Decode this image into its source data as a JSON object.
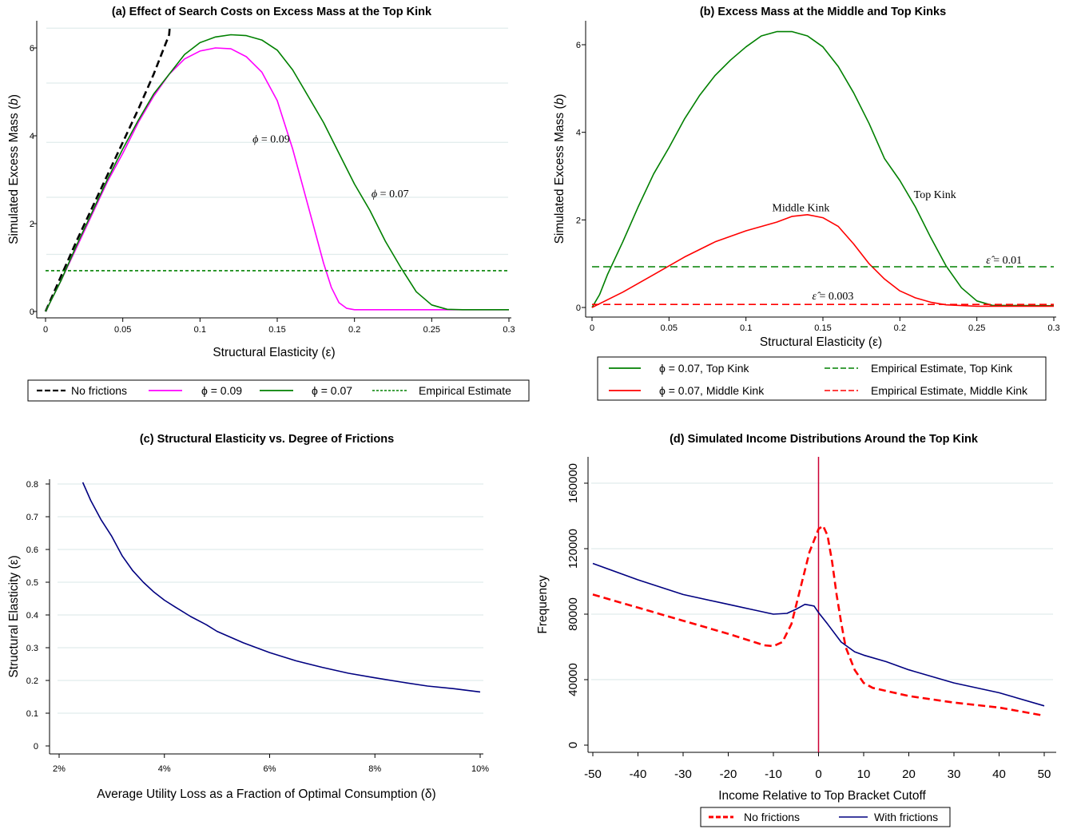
{
  "chart_data": [
    {
      "panel": "a",
      "type": "line",
      "title": "(a) Effect of Search Costs on Excess Mass at the Top Kink",
      "xlabel": "Structural Elasticity (ε)",
      "ylabel_main": "Simulated Excess Mass (",
      "ylabel_var": "b",
      "ylabel_end": ")",
      "xlim": [
        0,
        0.3
      ],
      "ylim": [
        0,
        6.5
      ],
      "xticks": [
        0,
        0.05,
        0.1,
        0.15,
        0.2,
        0.25,
        0.3
      ],
      "xtick_labels": [
        "0",
        "0.05",
        "0.1",
        "0.15",
        "0.2",
        "0.25",
        "0.3"
      ],
      "yticks": [
        0,
        2,
        4,
        6
      ],
      "ytick_labels": [
        "0",
        "2",
        "4",
        "6"
      ],
      "gridlines_y": [
        1.3,
        2.6,
        3.85,
        5.2,
        6.45
      ],
      "series": [
        {
          "name": "No frictions",
          "color": "#000000",
          "style": "dash",
          "x": [
            0,
            0.01,
            0.02,
            0.03,
            0.04,
            0.05,
            0.06,
            0.07,
            0.08,
            0.0805
          ],
          "y": [
            0,
            0.8,
            1.6,
            2.35,
            3.1,
            3.85,
            4.6,
            5.4,
            6.3,
            6.5
          ]
        },
        {
          "name": "ϕ = 0.09",
          "color": "#ff00ff",
          "style": "solid",
          "x": [
            0,
            0.01,
            0.02,
            0.03,
            0.04,
            0.05,
            0.06,
            0.07,
            0.08,
            0.09,
            0.1,
            0.11,
            0.12,
            0.13,
            0.14,
            0.15,
            0.16,
            0.17,
            0.18,
            0.185,
            0.19,
            0.195,
            0.2,
            0.21,
            0.22,
            0.25,
            0.3
          ],
          "y": [
            0,
            0.7,
            1.45,
            2.2,
            2.95,
            3.6,
            4.3,
            4.9,
            5.4,
            5.75,
            5.93,
            6.0,
            5.98,
            5.8,
            5.45,
            4.8,
            3.7,
            2.4,
            1.1,
            0.55,
            0.2,
            0.07,
            0.04,
            0.04,
            0.04,
            0.04,
            0.04
          ]
        },
        {
          "name": "ϕ = 0.07",
          "color": "#008000",
          "style": "solid",
          "x": [
            0,
            0.01,
            0.02,
            0.03,
            0.04,
            0.05,
            0.06,
            0.07,
            0.08,
            0.09,
            0.1,
            0.11,
            0.12,
            0.13,
            0.14,
            0.15,
            0.16,
            0.17,
            0.18,
            0.19,
            0.2,
            0.21,
            0.22,
            0.23,
            0.24,
            0.25,
            0.26,
            0.27,
            0.3
          ],
          "y": [
            0,
            0.7,
            1.5,
            2.25,
            3.0,
            3.7,
            4.35,
            4.95,
            5.4,
            5.85,
            6.12,
            6.25,
            6.3,
            6.28,
            6.18,
            5.95,
            5.5,
            4.9,
            4.3,
            3.6,
            2.9,
            2.3,
            1.6,
            1.0,
            0.45,
            0.15,
            0.05,
            0.04,
            0.04
          ]
        },
        {
          "name": "Empirical Estimate",
          "color": "#008000",
          "style": "dot",
          "x": [
            0,
            0.3
          ],
          "y": [
            0.93,
            0.93
          ]
        }
      ],
      "annotations": [
        {
          "label": "ϕ = 0.09",
          "sym": "ϕ",
          "text": " = 0.09",
          "x": 0.134,
          "y": 3.85
        },
        {
          "label": "ϕ = 0.07",
          "sym": "ϕ",
          "text": " = 0.07",
          "x": 0.211,
          "y": 2.6
        }
      ],
      "legend_position": "below"
    },
    {
      "panel": "b",
      "type": "line",
      "title": "(b) Excess Mass at the Middle and Top Kinks",
      "xlabel": "Structural Elasticity (ε)",
      "ylabel_main": "Simulated Excess Mass (",
      "ylabel_var": "b",
      "ylabel_end": ")",
      "xlim": [
        0,
        0.3
      ],
      "ylim": [
        0,
        6.5
      ],
      "xticks": [
        0,
        0.05,
        0.1,
        0.15,
        0.2,
        0.25,
        0.3
      ],
      "xtick_labels": [
        "0",
        "0.05",
        "0.1",
        "0.15",
        "0.2",
        "0.25",
        "0.3"
      ],
      "yticks": [
        0,
        2,
        4,
        6
      ],
      "ytick_labels": [
        "0",
        "2",
        "4",
        "6"
      ],
      "series": [
        {
          "name": "ϕ = 0.07, Top Kink",
          "color": "#008000",
          "style": "solid",
          "x": [
            0,
            0.005,
            0.01,
            0.02,
            0.03,
            0.04,
            0.05,
            0.06,
            0.07,
            0.08,
            0.09,
            0.1,
            0.11,
            0.12,
            0.13,
            0.14,
            0.15,
            0.16,
            0.17,
            0.18,
            0.19,
            0.2,
            0.21,
            0.22,
            0.23,
            0.24,
            0.25,
            0.26,
            0.3
          ],
          "y": [
            0,
            0.3,
            0.75,
            1.5,
            2.3,
            3.05,
            3.65,
            4.3,
            4.85,
            5.3,
            5.65,
            5.95,
            6.2,
            6.3,
            6.3,
            6.2,
            5.95,
            5.5,
            4.9,
            4.2,
            3.4,
            2.9,
            2.3,
            1.6,
            0.95,
            0.45,
            0.15,
            0.05,
            0.04
          ]
        },
        {
          "name": "ϕ = 0.07, Middle Kink",
          "color": "#ff0000",
          "style": "solid",
          "x": [
            0,
            0.02,
            0.04,
            0.06,
            0.08,
            0.1,
            0.12,
            0.13,
            0.14,
            0.15,
            0.16,
            0.17,
            0.18,
            0.19,
            0.2,
            0.21,
            0.22,
            0.23,
            0.25,
            0.3
          ],
          "y": [
            0,
            0.35,
            0.75,
            1.15,
            1.5,
            1.75,
            1.95,
            2.08,
            2.12,
            2.05,
            1.85,
            1.45,
            1.0,
            0.65,
            0.38,
            0.22,
            0.12,
            0.06,
            0.03,
            0.03
          ]
        },
        {
          "name": "Empirical Estimate, Top Kink",
          "color": "#008000",
          "style": "dash",
          "x": [
            0,
            0.3
          ],
          "y": [
            0.93,
            0.93
          ]
        },
        {
          "name": "Empirical Estimate, Middle Kink",
          "color": "#ff0000",
          "style": "dash",
          "x": [
            0,
            0.3
          ],
          "y": [
            0.07,
            0.07
          ]
        }
      ],
      "annotations": [
        {
          "label": "Top Kink",
          "text": "Top Kink",
          "x": 0.209,
          "y": 2.5
        },
        {
          "label": "Middle Kink",
          "text": "Middle Kink",
          "x": 0.117,
          "y": 2.2
        },
        {
          "label": "ε̂ = 0.01",
          "sym": "ε̂",
          "text": " = 0.01",
          "x": 0.256,
          "y": 1.0
        },
        {
          "label": "ε̂ = 0.003",
          "sym": "ε̂",
          "text": " = 0.003",
          "x": 0.143,
          "y": 0.18
        }
      ],
      "legend_position": "below"
    },
    {
      "panel": "c",
      "type": "line",
      "title": "(c) Structural Elasticity vs. Degree of Frictions",
      "xlabel": "Average Utility Loss as a Fraction of Optimal Consumption (δ)",
      "ylabel_main": "Structural Elasticity (ε)",
      "xlim": [
        0.018,
        0.1005
      ],
      "ylim": [
        0,
        0.81
      ],
      "xticks": [
        0.02,
        0.04,
        0.06,
        0.08,
        0.1
      ],
      "xtick_labels": [
        "2%",
        "4%",
        "6%",
        "8%",
        "10%"
      ],
      "yticks": [
        0,
        0.1,
        0.2,
        0.3,
        0.4,
        0.5,
        0.6,
        0.7,
        0.8
      ],
      "ytick_labels": [
        "0",
        "0.1",
        "0.2",
        "0.3",
        "0.4",
        "0.5",
        "0.6",
        "0.7",
        "0.8"
      ],
      "series": [
        {
          "name": "",
          "color": "#000080",
          "style": "solid",
          "x": [
            0.0245,
            0.026,
            0.028,
            0.03,
            0.032,
            0.034,
            0.036,
            0.038,
            0.04,
            0.042,
            0.045,
            0.048,
            0.05,
            0.055,
            0.06,
            0.065,
            0.07,
            0.075,
            0.08,
            0.085,
            0.09,
            0.095,
            0.1
          ],
          "y": [
            0.805,
            0.75,
            0.69,
            0.64,
            0.58,
            0.535,
            0.5,
            0.47,
            0.445,
            0.425,
            0.395,
            0.37,
            0.35,
            0.315,
            0.285,
            0.26,
            0.24,
            0.222,
            0.208,
            0.195,
            0.183,
            0.175,
            0.165
          ]
        }
      ]
    },
    {
      "panel": "d",
      "type": "line",
      "title": "(d) Simulated Income Distributions Around the Top Kink",
      "xlabel": "Income Relative to Top Bracket Cutoff",
      "ylabel_main": "Frequency",
      "xlim": [
        -52,
        52
      ],
      "ylim": [
        -4000,
        176000
      ],
      "xticks": [
        -50,
        -40,
        -30,
        -20,
        -10,
        0,
        10,
        20,
        30,
        40,
        50
      ],
      "xtick_labels": [
        "-50",
        "-40",
        "-30",
        "-20",
        "-10",
        "0",
        "10",
        "20",
        "30",
        "40",
        "50"
      ],
      "yticks": [
        0,
        40000,
        80000,
        120000,
        160000
      ],
      "ytick_labels": [
        "0",
        "40000",
        "80000",
        "120000",
        "160000"
      ],
      "series": [
        {
          "name": "No frictions",
          "color": "#ff0000",
          "style": "dash",
          "x": [
            -50,
            -40,
            -30,
            -20,
            -12,
            -10,
            -8,
            -6,
            -4,
            -2,
            0,
            1,
            2,
            3,
            4,
            5,
            6,
            8,
            10,
            12,
            20,
            30,
            40,
            50
          ],
          "y": [
            92000,
            84000,
            76000,
            68000,
            61000,
            60500,
            63000,
            74000,
            96000,
            118000,
            132000,
            134000,
            128000,
            112000,
            92000,
            75000,
            60000,
            46000,
            38000,
            35000,
            30000,
            26000,
            23000,
            18000
          ]
        },
        {
          "name": "With frictions",
          "color": "#000080",
          "style": "solid",
          "x": [
            -50,
            -40,
            -30,
            -20,
            -15,
            -10,
            -7,
            -5,
            -3,
            -1,
            0,
            2,
            5,
            8,
            10,
            15,
            20,
            30,
            40,
            50
          ],
          "y": [
            111000,
            101000,
            92000,
            86000,
            83000,
            80000,
            80500,
            83000,
            86000,
            85000,
            81000,
            74000,
            63000,
            57000,
            55000,
            51000,
            46000,
            38000,
            32000,
            24000
          ]
        }
      ],
      "vline": {
        "x": 0,
        "color": "#cc0033"
      },
      "gridlines_y": [
        40000,
        80000,
        120000,
        160000
      ],
      "legend_position": "below"
    }
  ]
}
